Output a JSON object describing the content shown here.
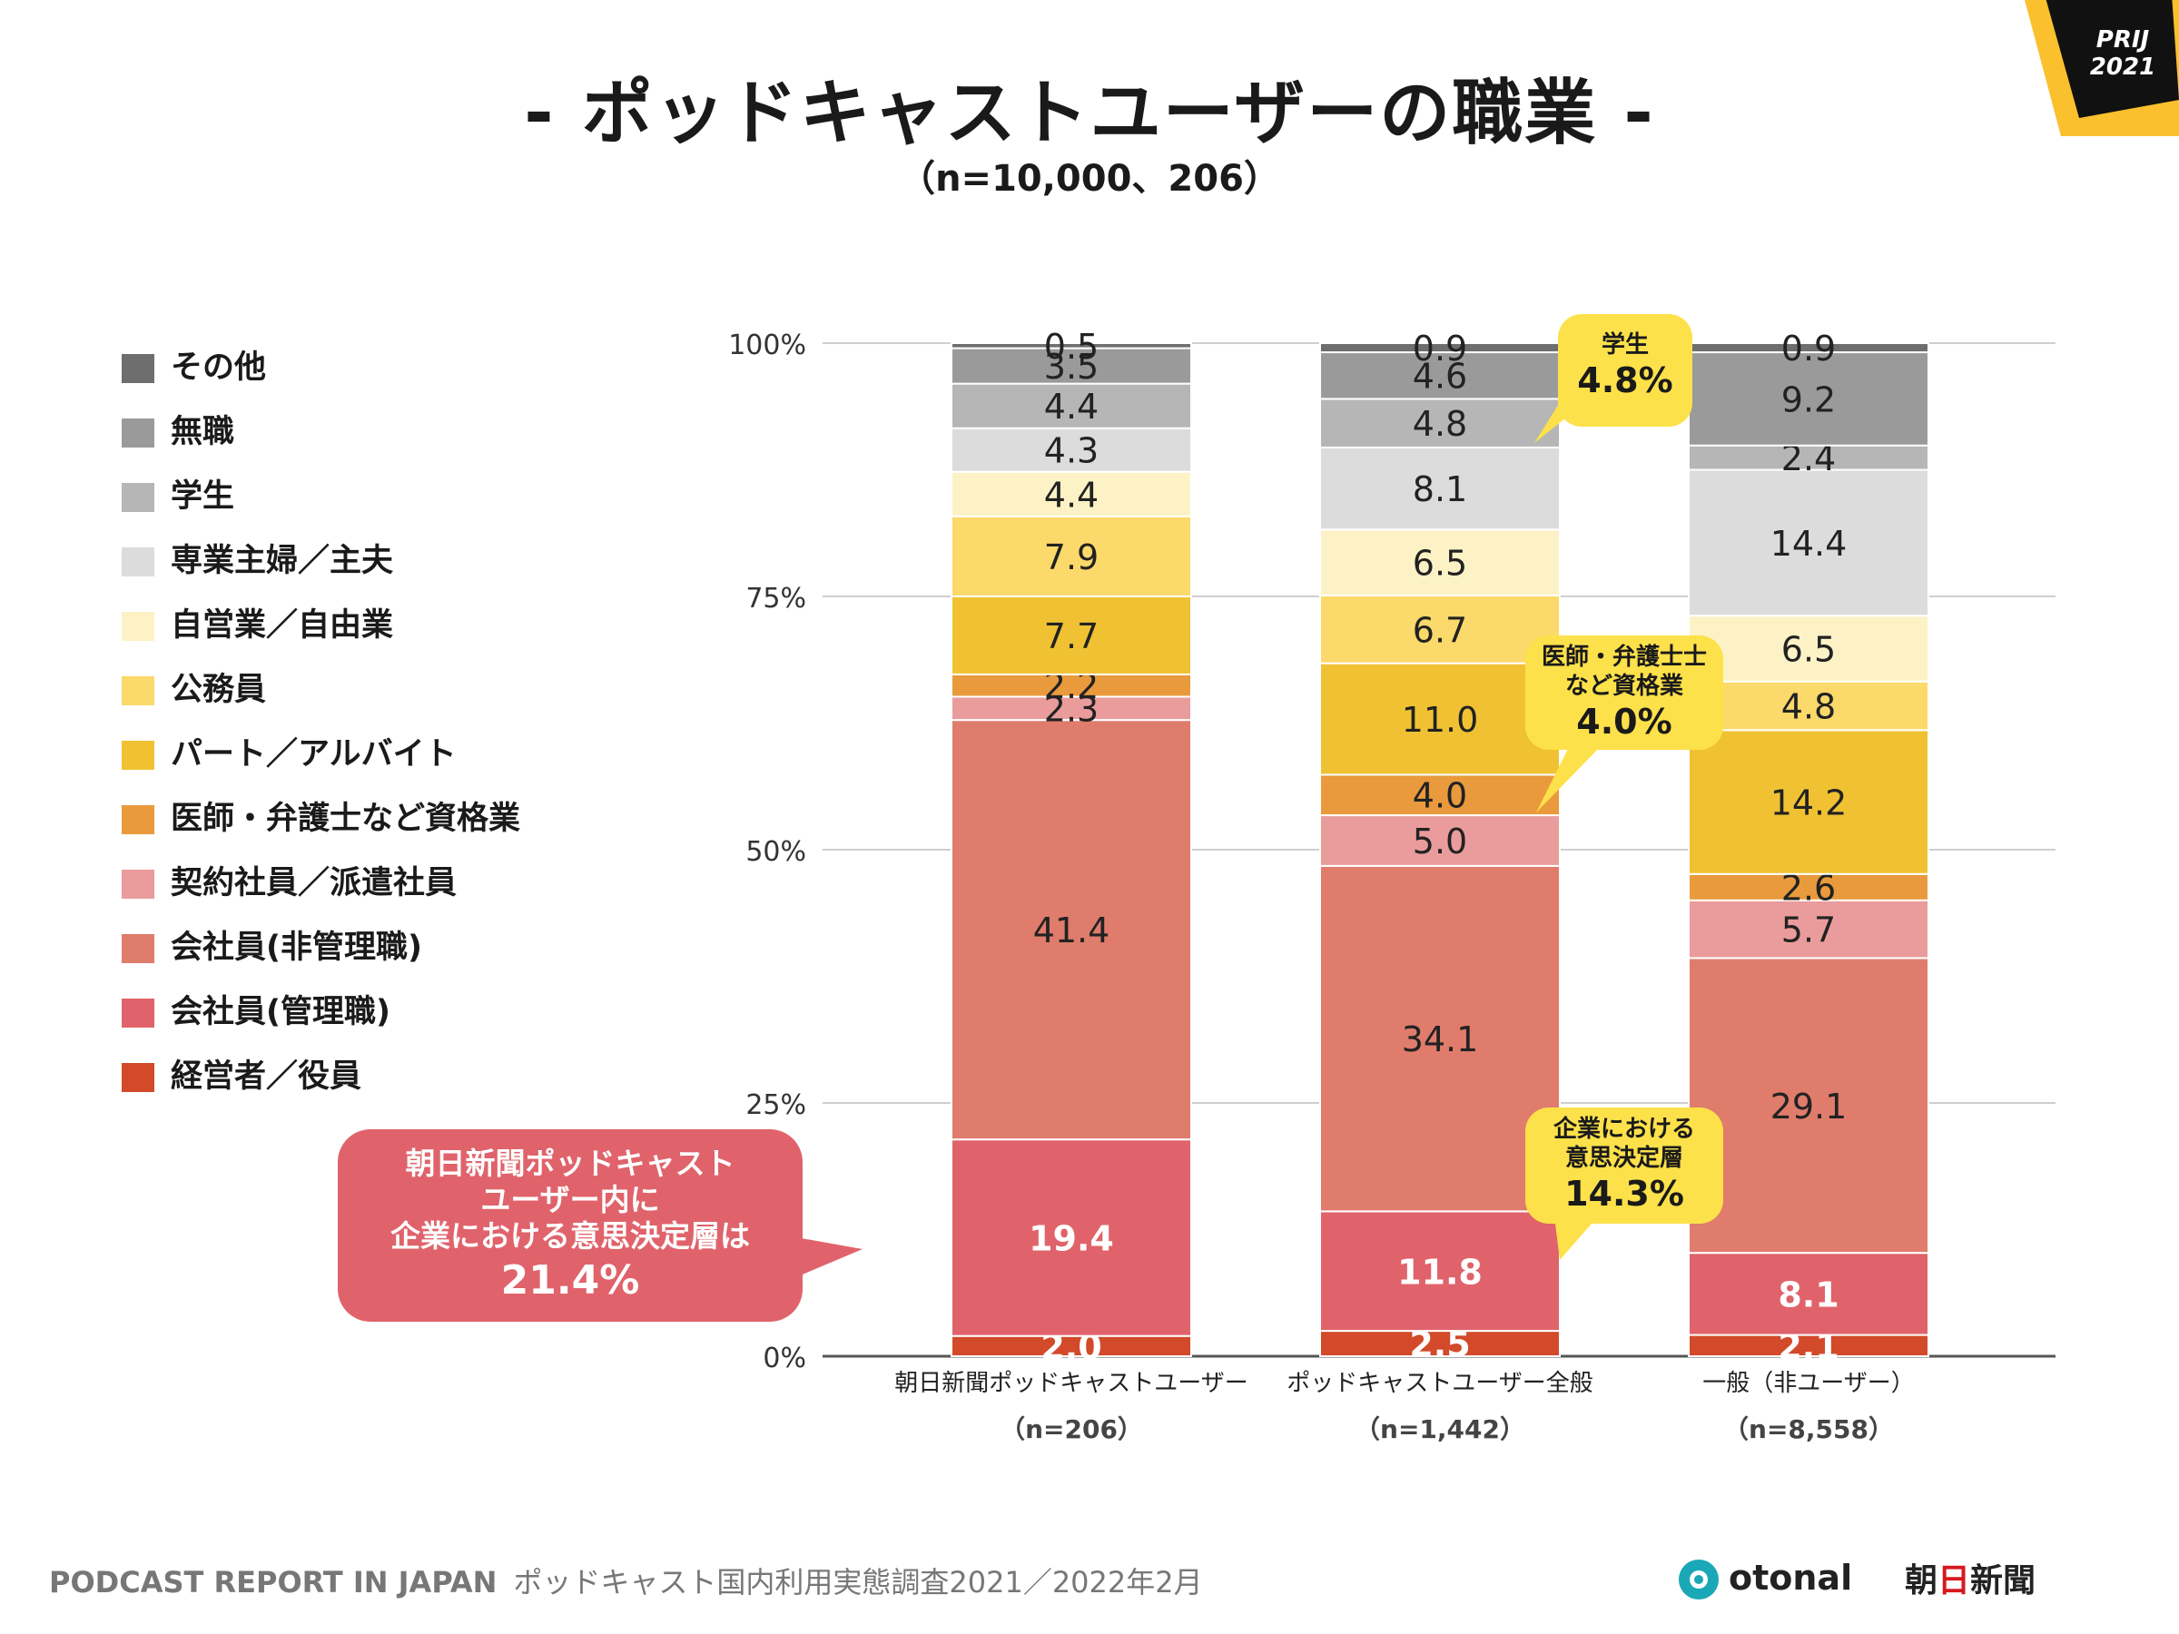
{
  "title": "- ポッドキャストユーザーの職業 -",
  "subtitle": "（n=10,000、206）",
  "badge": {
    "line1": "PRIJ",
    "line2": "2021"
  },
  "colors": {
    "その他": "#6e6e6e",
    "無職": "#9a9a9a",
    "学生": "#b6b6b6",
    "専業主婦／主夫": "#dcdcdc",
    "自営業／自由業": "#fdf2c6",
    "公務員": "#fbd96a",
    "パート／アルバイト": "#f0c233",
    "医師・弁護士など資格業": "#e99a3c",
    "契約社員／派遣社員": "#e99c9b",
    "会社員(非管理職)": "#df7c6c",
    "会社員(管理職)": "#e0636b",
    "経営者／役員": "#d24a2a"
  },
  "legend": [
    "その他",
    "無職",
    "学生",
    "専業主婦／主夫",
    "自営業／自由業",
    "公務員",
    "パート／アルバイト",
    "医師・弁護士など資格業",
    "契約社員／派遣社員",
    "会社員(非管理職)",
    "会社員(管理職)",
    "経営者／役員"
  ],
  "chart_data": {
    "type": "bar",
    "stacked": true,
    "categories": [
      "朝日新聞ポッドキャストユーザー",
      "ポッドキャストユーザー全般",
      "一般（非ユーザー）"
    ],
    "category_n": [
      "（n=206）",
      "（n=1,442）",
      "（n=8,558）"
    ],
    "yticks": [
      "0%",
      "25%",
      "50%",
      "75%",
      "100%"
    ],
    "ylim": [
      0,
      100
    ],
    "series": [
      {
        "name": "経営者／役員",
        "values": [
          2.0,
          2.5,
          2.1
        ]
      },
      {
        "name": "会社員(管理職)",
        "values": [
          19.4,
          11.8,
          8.1
        ]
      },
      {
        "name": "会社員(非管理職)",
        "values": [
          41.4,
          34.1,
          29.1
        ]
      },
      {
        "name": "契約社員／派遣社員",
        "values": [
          2.3,
          5.0,
          5.7
        ]
      },
      {
        "name": "医師・弁護士など資格業",
        "values": [
          2.2,
          4.0,
          2.6
        ]
      },
      {
        "name": "パート／アルバイト",
        "values": [
          7.7,
          11.0,
          14.2
        ]
      },
      {
        "name": "公務員",
        "values": [
          7.9,
          6.7,
          4.8
        ]
      },
      {
        "name": "自営業／自由業",
        "values": [
          4.4,
          6.5,
          6.5
        ]
      },
      {
        "name": "専業主婦／主夫",
        "values": [
          4.3,
          8.1,
          14.4
        ]
      },
      {
        "name": "学生",
        "values": [
          4.4,
          4.8,
          2.4
        ]
      },
      {
        "name": "無職",
        "values": [
          3.5,
          4.6,
          9.2
        ]
      },
      {
        "name": "その他",
        "values": [
          0.5,
          0.9,
          0.9
        ]
      }
    ]
  },
  "callouts": {
    "main": {
      "lines": [
        "朝日新聞ポッドキャスト",
        "ユーザー内に",
        "企業における意思決定層は"
      ],
      "value": "21.4%"
    },
    "student": {
      "label": "学生",
      "value": "4.8%"
    },
    "license": {
      "label1": "医師・弁護士士",
      "label2": "など資格業",
      "value": "4.0%"
    },
    "decision": {
      "label1": "企業における",
      "label2": "意思決定層",
      "value": "14.3%"
    }
  },
  "footer": {
    "left": "PODCAST REPORT IN JAPAN",
    "right": "ポッドキャスト国内利用実態調査2021／2022年2月",
    "brand1": "otonal",
    "brand2_a": "朝",
    "brand2_b": "日",
    "brand2_c": "新聞"
  }
}
